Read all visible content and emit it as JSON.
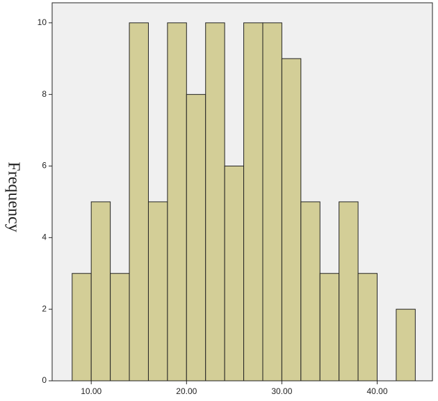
{
  "chart_data": {
    "type": "histogram",
    "y_label": "Frequency",
    "bins": [
      8,
      10,
      12,
      14,
      16,
      18,
      20,
      22,
      24,
      26,
      28,
      30,
      32,
      34,
      36,
      38,
      40,
      42,
      44
    ],
    "values": [
      3,
      5,
      3,
      10,
      5,
      10,
      8,
      10,
      6,
      10,
      10,
      9,
      5,
      3,
      5,
      3,
      0,
      2
    ],
    "color": "#d3ce97",
    "background": "#f0f0f0",
    "xlim": [
      5.9,
      45.8
    ],
    "ylim": [
      0,
      10.56
    ],
    "xticks": [
      {
        "value": 10,
        "label": "10.00"
      },
      {
        "value": 20,
        "label": "20.00"
      },
      {
        "value": 30,
        "label": "30.00"
      },
      {
        "value": 40,
        "label": "40.00"
      }
    ],
    "yticks": [
      0,
      2,
      4,
      6,
      8,
      10
    ]
  }
}
